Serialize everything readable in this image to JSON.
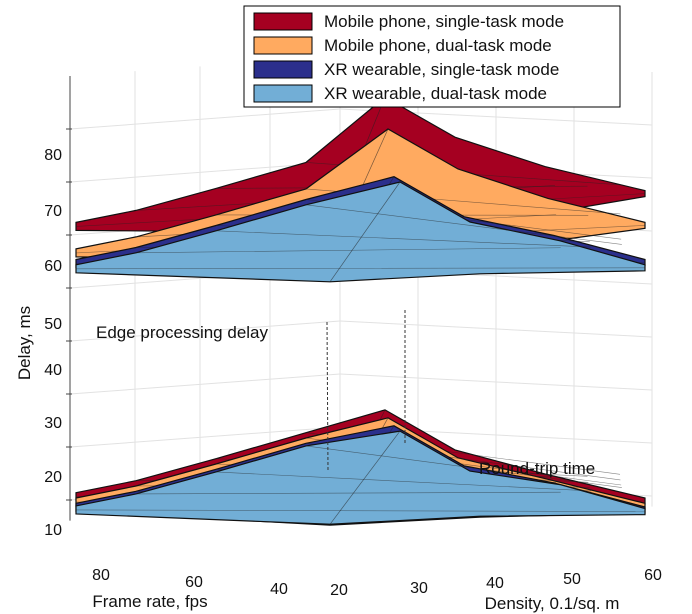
{
  "chart_data": {
    "type": "surface3d",
    "xlabel": "Density, 0.1/sq. m",
    "ylabel": "Frame rate, fps",
    "zlabel": "Delay, ms",
    "x_ticks": [
      "20",
      "30",
      "40",
      "50",
      "60"
    ],
    "y_ticks": [
      "80",
      "60",
      "40"
    ],
    "z_ticks": [
      "10",
      "20",
      "30",
      "40",
      "50",
      "60",
      "70",
      "80"
    ],
    "zlim": [
      8,
      90
    ],
    "grid": true,
    "legend_position": "top-right",
    "annotations": [
      "Edge processing delay",
      "Round-trip time"
    ],
    "colors": {
      "mobile_single": "#a50021",
      "mobile_dual": "#ffaa60",
      "xr_single": "#2b2f8c",
      "xr_dual": "#72aed6"
    },
    "series": [
      {
        "name": "Mobile phone, single-task mode",
        "group": "Edge processing delay",
        "left_edge": 62,
        "peak": 86,
        "right_edge": 68
      },
      {
        "name": "Mobile phone, dual-task mode",
        "group": "Edge processing delay",
        "left_edge": 57,
        "peak": 80,
        "right_edge": 62
      },
      {
        "name": "XR wearable, single-task mode",
        "group": "Edge processing delay",
        "left_edge": 55,
        "peak": 71,
        "right_edge": 55
      },
      {
        "name": "XR wearable, dual-task mode",
        "group": "Edge processing delay",
        "left_edge": 54,
        "peak": 70,
        "right_edge": 54
      },
      {
        "name": "Mobile phone, single-task mode",
        "group": "Round-trip time",
        "left_edge": 11,
        "peak": 27,
        "right_edge": 10
      },
      {
        "name": "Mobile phone, dual-task mode",
        "group": "Round-trip time",
        "left_edge": 10,
        "peak": 25.5,
        "right_edge": 9
      },
      {
        "name": "XR wearable, single-task mode",
        "group": "Round-trip time",
        "left_edge": 9,
        "peak": 24,
        "right_edge": 8.3
      },
      {
        "name": "XR wearable, dual-task mode",
        "group": "Round-trip time",
        "left_edge": 8.5,
        "peak": 23,
        "right_edge": 8
      }
    ]
  }
}
